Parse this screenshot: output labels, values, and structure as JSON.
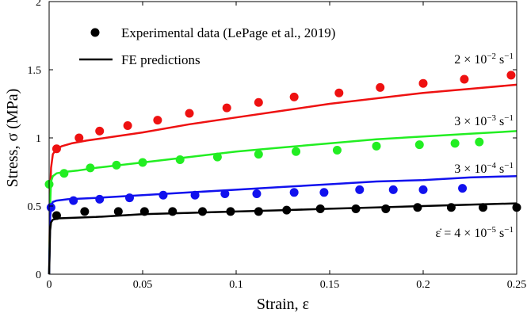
{
  "chart_data": {
    "type": "scatter",
    "title": "",
    "xlabel": "Strain, ε",
    "ylabel": "Stress, σ (MPa)",
    "xlim": [
      0,
      0.25
    ],
    "ylim": [
      0,
      2
    ],
    "xticks": [
      0,
      0.05,
      0.1,
      0.15,
      0.2,
      0.25
    ],
    "yticks": [
      0,
      0.5,
      1,
      1.5,
      2
    ],
    "xtick_labels": [
      "0",
      "0.05",
      "0.1",
      "0.15",
      "0.2",
      "0.25"
    ],
    "ytick_labels": [
      "0",
      "0.5",
      "1",
      "1.5",
      "2"
    ],
    "grid": false,
    "legend_position": "top-left",
    "legend": {
      "markers_label": "Experimental data (LePage et al., 2019)",
      "lines_label": "FE predictions"
    },
    "series": [
      {
        "annotation_parts": {
          "mantissa": "2 × 10",
          "exponent": "−2",
          "unit": " s",
          "unit_exp": "−1"
        },
        "color": "#ee1111",
        "experimental": {
          "x": [
            0.004,
            0.016,
            0.027,
            0.042,
            0.058,
            0.075,
            0.095,
            0.112,
            0.131,
            0.155,
            0.177,
            0.2,
            0.222,
            0.247
          ],
          "y": [
            0.92,
            1.0,
            1.05,
            1.09,
            1.13,
            1.18,
            1.22,
            1.26,
            1.3,
            1.33,
            1.37,
            1.4,
            1.43,
            1.46
          ]
        },
        "fe": {
          "x": [
            0,
            0.0005,
            0.001,
            0.002,
            0.004,
            0.007,
            0.012,
            0.02,
            0.03,
            0.05,
            0.075,
            0.1,
            0.125,
            0.15,
            0.175,
            0.2,
            0.225,
            0.25
          ],
          "y": [
            0,
            0.55,
            0.78,
            0.88,
            0.92,
            0.94,
            0.96,
            0.98,
            1.0,
            1.04,
            1.1,
            1.15,
            1.2,
            1.25,
            1.29,
            1.33,
            1.36,
            1.39
          ]
        }
      },
      {
        "annotation_parts": {
          "mantissa": "3 × 10",
          "exponent": "−3",
          "unit": " s",
          "unit_exp": "−1"
        },
        "color": "#22ee22",
        "experimental": {
          "x": [
            0.0,
            0.008,
            0.022,
            0.036,
            0.05,
            0.07,
            0.09,
            0.112,
            0.132,
            0.154,
            0.175,
            0.198,
            0.217,
            0.23
          ],
          "y": [
            0.66,
            0.74,
            0.78,
            0.8,
            0.82,
            0.84,
            0.86,
            0.88,
            0.9,
            0.91,
            0.94,
            0.95,
            0.96,
            0.97
          ]
        },
        "fe": {
          "x": [
            0,
            0.0005,
            0.001,
            0.002,
            0.004,
            0.008,
            0.015,
            0.025,
            0.05,
            0.075,
            0.1,
            0.125,
            0.15,
            0.175,
            0.2,
            0.225,
            0.25
          ],
          "y": [
            0,
            0.5,
            0.68,
            0.72,
            0.74,
            0.75,
            0.76,
            0.78,
            0.82,
            0.86,
            0.9,
            0.93,
            0.96,
            0.99,
            1.01,
            1.03,
            1.05
          ]
        }
      },
      {
        "annotation_parts": {
          "mantissa": "3 × 10",
          "exponent": "−4",
          "unit": " s",
          "unit_exp": "−1"
        },
        "color": "#1111ee",
        "experimental": {
          "x": [
            0.001,
            0.013,
            0.027,
            0.043,
            0.061,
            0.078,
            0.094,
            0.111,
            0.131,
            0.147,
            0.166,
            0.184,
            0.2,
            0.221
          ],
          "y": [
            0.49,
            0.54,
            0.55,
            0.56,
            0.58,
            0.58,
            0.59,
            0.59,
            0.6,
            0.6,
            0.62,
            0.62,
            0.62,
            0.63
          ]
        },
        "fe": {
          "x": [
            0,
            0.0005,
            0.001,
            0.002,
            0.004,
            0.01,
            0.025,
            0.05,
            0.075,
            0.1,
            0.125,
            0.15,
            0.175,
            0.2,
            0.225,
            0.25
          ],
          "y": [
            0,
            0.4,
            0.5,
            0.53,
            0.54,
            0.55,
            0.56,
            0.58,
            0.6,
            0.62,
            0.64,
            0.66,
            0.68,
            0.69,
            0.71,
            0.72
          ]
        }
      },
      {
        "annotation_parts": {
          "prefix": "ε̇ = ",
          "mantissa": "4 × 10",
          "exponent": "−5",
          "unit": " s",
          "unit_exp": "−1"
        },
        "color": "#000000",
        "experimental": {
          "x": [
            0.004,
            0.019,
            0.037,
            0.051,
            0.066,
            0.082,
            0.097,
            0.112,
            0.127,
            0.145,
            0.164,
            0.18,
            0.197,
            0.215,
            0.232,
            0.25
          ],
          "y": [
            0.43,
            0.46,
            0.46,
            0.46,
            0.46,
            0.46,
            0.46,
            0.46,
            0.47,
            0.48,
            0.48,
            0.48,
            0.49,
            0.49,
            0.49,
            0.49
          ]
        },
        "fe": {
          "x": [
            0,
            0.0005,
            0.001,
            0.002,
            0.005,
            0.025,
            0.05,
            0.075,
            0.1,
            0.125,
            0.15,
            0.175,
            0.2,
            0.225,
            0.25
          ],
          "y": [
            0,
            0.32,
            0.38,
            0.4,
            0.41,
            0.42,
            0.44,
            0.45,
            0.46,
            0.47,
            0.48,
            0.49,
            0.5,
            0.51,
            0.52
          ]
        }
      }
    ]
  }
}
